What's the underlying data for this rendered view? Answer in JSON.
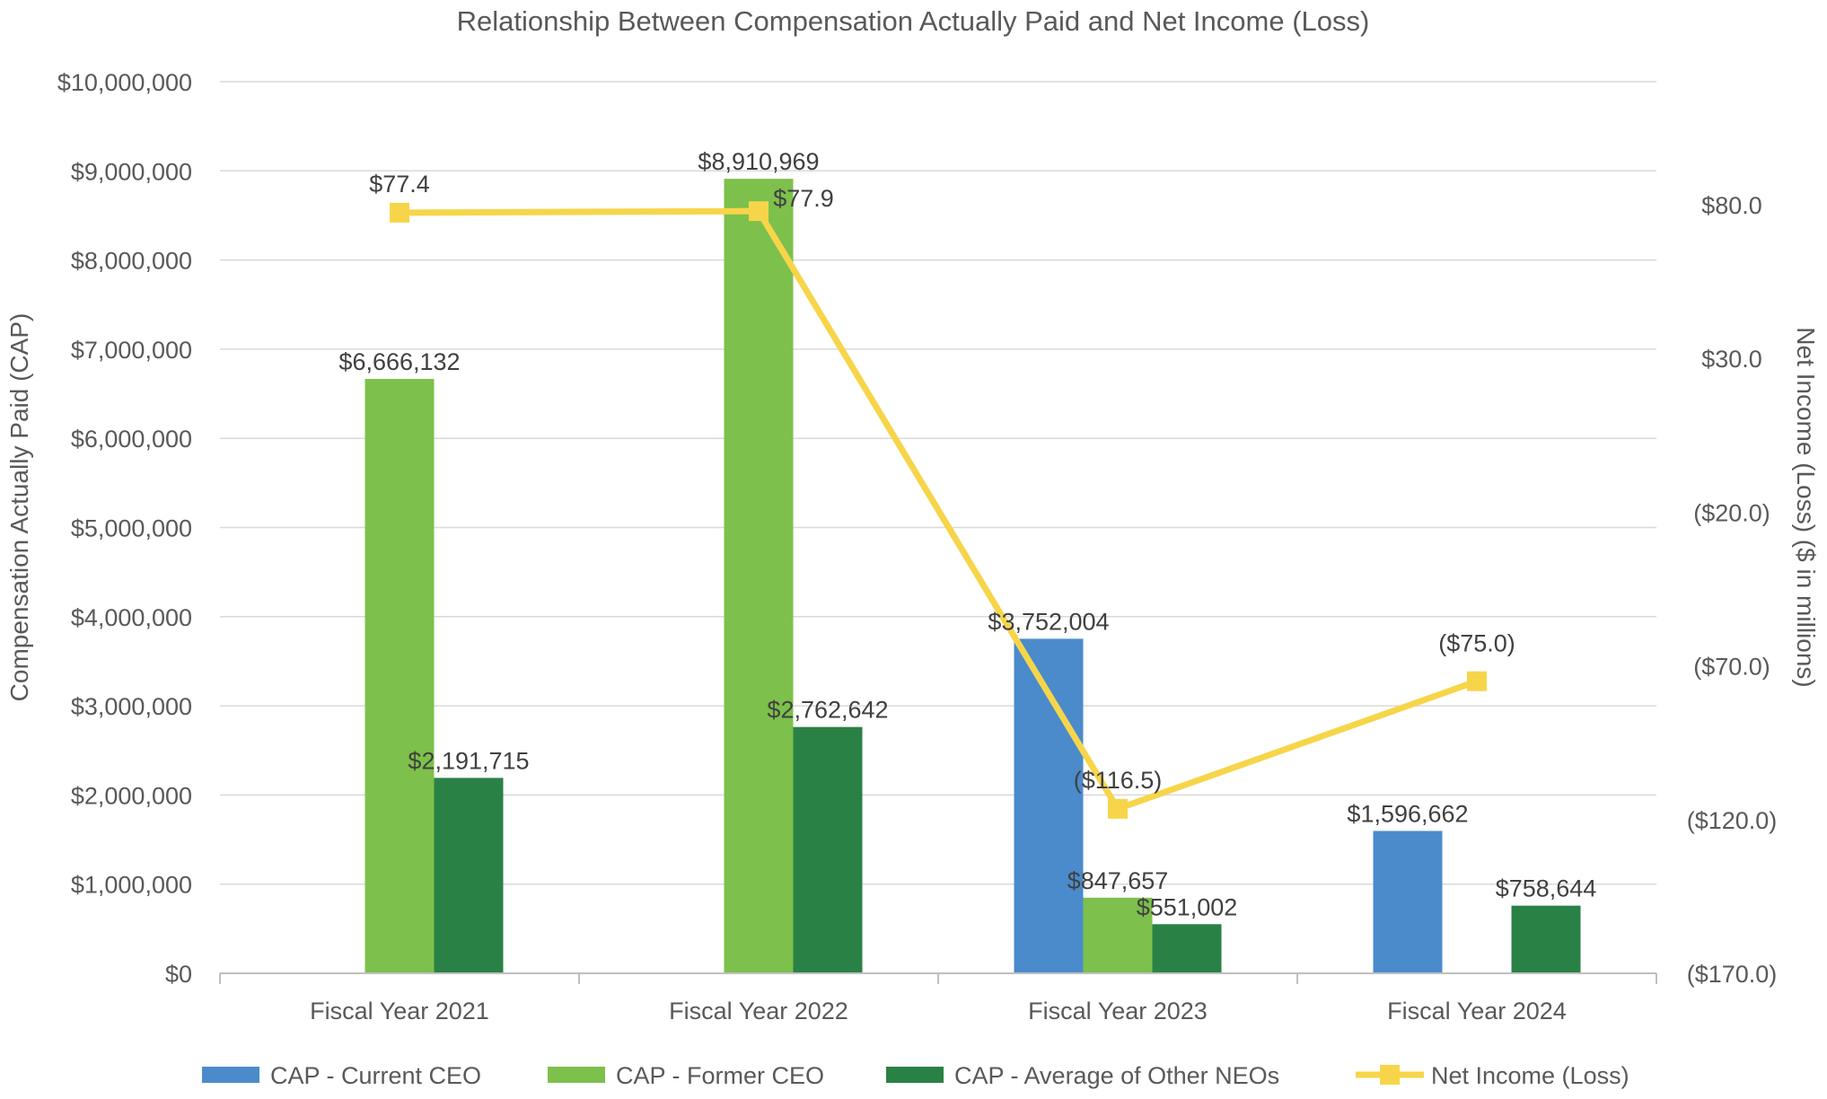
{
  "chart_data": {
    "type": "bar",
    "title": "Relationship Between Compensation Actually Paid and Net Income (Loss)",
    "ylabel": "Compensation Actually Paid (CAP)",
    "y2label": "Net Income (Loss) ($ in millions)",
    "categories": [
      "Fiscal Year 2021",
      "Fiscal Year 2022",
      "Fiscal Year 2023",
      "Fiscal Year 2024"
    ],
    "ylim": [
      0,
      10000000
    ],
    "y2lim": [
      -170,
      120
    ],
    "y_ticks": [
      {
        "value": 0,
        "label": "$0"
      },
      {
        "value": 1000000,
        "label": "$1,000,000"
      },
      {
        "value": 2000000,
        "label": "$2,000,000"
      },
      {
        "value": 3000000,
        "label": "$3,000,000"
      },
      {
        "value": 4000000,
        "label": "$4,000,000"
      },
      {
        "value": 5000000,
        "label": "$5,000,000"
      },
      {
        "value": 6000000,
        "label": "$6,000,000"
      },
      {
        "value": 7000000,
        "label": "$7,000,000"
      },
      {
        "value": 8000000,
        "label": "$8,000,000"
      },
      {
        "value": 9000000,
        "label": "$9,000,000"
      },
      {
        "value": 10000000,
        "label": "$10,000,000"
      }
    ],
    "y2_ticks": [
      {
        "value": 80,
        "label": "$80.0"
      },
      {
        "value": 30,
        "label": "$30.0"
      },
      {
        "value": -20,
        "label": "($20.0)"
      },
      {
        "value": -70,
        "label": "($70.0)"
      },
      {
        "value": -120,
        "label": "($120.0)"
      },
      {
        "value": -170,
        "label": "($170.0)"
      }
    ],
    "grid": true,
    "legend_position": "bottom",
    "series": [
      {
        "name": "CAP - Current CEO",
        "type": "bar",
        "axis": "left",
        "color": "#4b8bcb",
        "values": [
          null,
          null,
          3752004,
          1596662
        ],
        "labels": [
          "",
          "",
          "$3,752,004",
          "$1,596,662"
        ]
      },
      {
        "name": "CAP - Former CEO",
        "type": "bar",
        "axis": "left",
        "color": "#7dc04b",
        "values": [
          6666132,
          8910969,
          847657,
          null
        ],
        "labels": [
          "$6,666,132",
          "$8,910,969",
          "$847,657",
          ""
        ]
      },
      {
        "name": "CAP - Average of Other NEOs",
        "type": "bar",
        "axis": "left",
        "color": "#2a8146",
        "values": [
          2191715,
          2762642,
          551002,
          758644
        ],
        "labels": [
          "$2,191,715",
          "$2,762,642",
          "$551,002",
          "$758,644"
        ]
      },
      {
        "name": "Net Income (Loss)",
        "type": "line",
        "axis": "right",
        "color": "#f7d54a",
        "values": [
          77.4,
          77.9,
          -116.5,
          -75.0
        ],
        "labels": [
          "$77.4",
          "$77.9",
          "($116.5)",
          "($75.0)"
        ]
      }
    ]
  }
}
